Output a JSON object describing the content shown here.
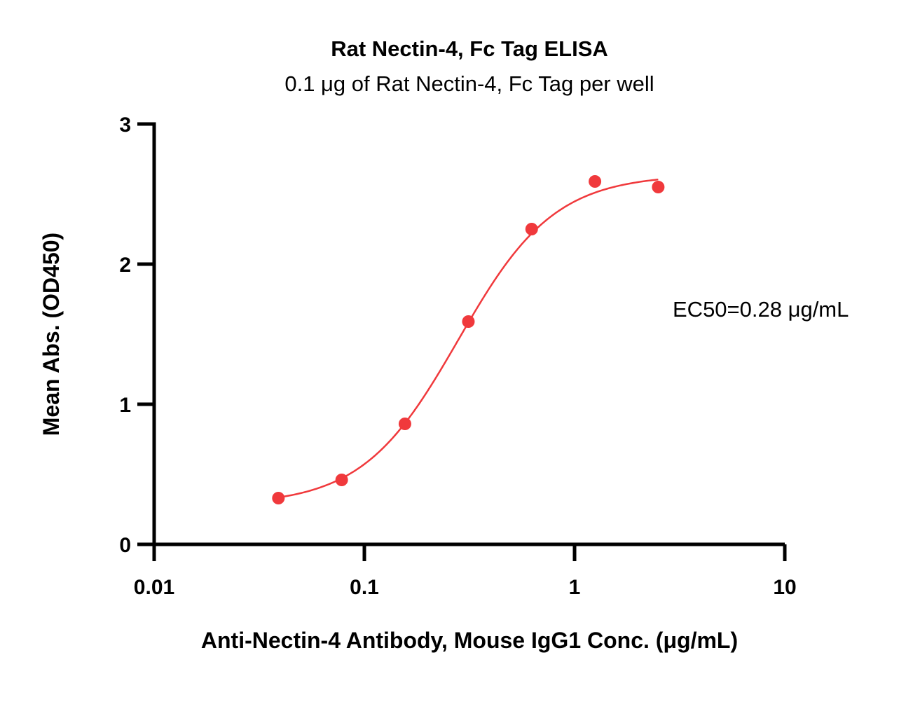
{
  "chart_data": {
    "type": "scatter",
    "title": "Rat Nectin-4, Fc Tag ELISA",
    "subtitle": "0.1 μg of Rat Nectin-4, Fc Tag per well",
    "xlabel": "Anti-Nectin-4 Antibody, Mouse IgG1 Conc. (μg/mL)",
    "ylabel": "Mean Abs. (OD450)",
    "x_scale": "log",
    "xlim": [
      0.01,
      10
    ],
    "ylim": [
      0,
      3
    ],
    "x_ticks": [
      0.01,
      0.1,
      1,
      10
    ],
    "x_tick_labels": [
      "0.01",
      "0.1",
      "1",
      "10"
    ],
    "y_ticks": [
      0,
      1,
      2,
      3
    ],
    "y_tick_labels": [
      "0",
      "1",
      "2",
      "3"
    ],
    "grid": false,
    "series": [
      {
        "x": [
          0.039,
          0.078,
          0.156,
          0.3125,
          0.625,
          1.25,
          2.5
        ],
        "y": [
          0.33,
          0.46,
          0.86,
          1.59,
          2.25,
          2.59,
          2.55
        ],
        "color": "#f0393c",
        "fit": "4PL sigmoid"
      }
    ],
    "fit_params": {
      "bottom": 0.28,
      "top": 2.64,
      "ec50": 0.28,
      "hill": 1.9
    },
    "annotation": "EC50=0.28 μg/mL"
  }
}
